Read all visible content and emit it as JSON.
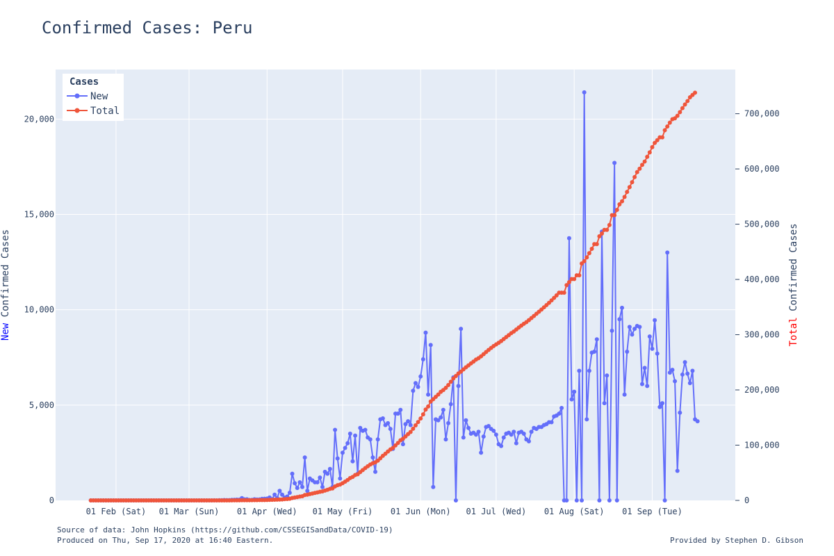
{
  "title": "Confirmed Cases: Peru",
  "footer": {
    "source": "Source of data: John Hopkins (https://github.com/CSSEGISandData/COVID-19)",
    "produced": "Produced on Thu, Sep 17, 2020 at 16:40 Eastern.",
    "credit": "Provided by Stephen D. Gibson"
  },
  "colors": {
    "new": "#636efa",
    "total": "#ef553b",
    "plot_bg": "#e5ecf6"
  },
  "chart_data": {
    "type": "line",
    "title": "Confirmed Cases: Peru",
    "legend": {
      "title": "Cases",
      "position": "top-left",
      "entries": [
        "New",
        "Total"
      ]
    },
    "y_left_label": {
      "prefix": "New",
      "rest": " Confirmed Cases"
    },
    "y_right_label": {
      "prefix": "Total",
      "rest": " Confirmed Cases"
    },
    "y_left_ticks": [
      "0",
      "5,000",
      "10,000",
      "15,000",
      "20,000"
    ],
    "y_left_tick_values": [
      0,
      5000,
      10000,
      15000,
      20000
    ],
    "y_right_ticks": [
      "0",
      "100,000",
      "200,000",
      "300,000",
      "400,000",
      "500,000",
      "600,000",
      "700,000"
    ],
    "y_right_tick_values": [
      0,
      100000,
      200000,
      300000,
      400000,
      500000,
      600000,
      700000
    ],
    "x_ticks": [
      "01 Feb (Sat)",
      "01 Mar (Sun)",
      "01 Apr (Wed)",
      "01 May (Fri)",
      "01 Jun (Mon)",
      "01 Jul (Wed)",
      "01 Aug (Sat)",
      "01 Sep (Tue)"
    ],
    "x_tick_dates": [
      "2020-02-01",
      "2020-03-01",
      "2020-04-01",
      "2020-05-01",
      "2020-06-01",
      "2020-07-01",
      "2020-08-01",
      "2020-09-01"
    ],
    "x_range": [
      "2020-01-08",
      "2020-10-04"
    ],
    "y_left_range": [
      0,
      22600
    ],
    "y_right_range": [
      0,
      780000
    ],
    "grid": true,
    "dates_start": "2020-01-22",
    "series": [
      {
        "name": "New",
        "axis": "left",
        "values": [
          0,
          0,
          0,
          0,
          0,
          0,
          0,
          0,
          0,
          0,
          0,
          0,
          0,
          0,
          0,
          0,
          0,
          0,
          0,
          0,
          0,
          0,
          0,
          0,
          0,
          0,
          0,
          0,
          0,
          0,
          0,
          0,
          0,
          0,
          0,
          0,
          0,
          0,
          0,
          0,
          0,
          0,
          0,
          0,
          0,
          0,
          0,
          0,
          1,
          6,
          2,
          7,
          10,
          20,
          13,
          15,
          28,
          31,
          39,
          38,
          117,
          55,
          60,
          23,
          28,
          60,
          45,
          50,
          80,
          85,
          95,
          150,
          60,
          300,
          120,
          500,
          300,
          150,
          200,
          400,
          1400,
          900,
          650,
          950,
          700,
          2250,
          500,
          1150,
          1050,
          950,
          950,
          1200,
          700,
          1500,
          1400,
          1650,
          700,
          3700,
          2200,
          1150,
          2500,
          2750,
          3000,
          3500,
          2050,
          3400,
          1400,
          3800,
          3650,
          3700,
          3300,
          3200,
          2250,
          1500,
          3200,
          4250,
          4300,
          3950,
          4050,
          3750,
          2700,
          4550,
          4550,
          4750,
          2950,
          4000,
          4150,
          3950,
          5750,
          6150,
          5950,
          6500,
          7400,
          8800,
          5550,
          8150,
          700,
          4250,
          4200,
          4350,
          4750,
          3200,
          4050,
          5050,
          6450,
          0,
          6000,
          9000,
          3300,
          4200,
          3800,
          3500,
          3550,
          3450,
          3600,
          2500,
          3350,
          3850,
          3900,
          3750,
          3650,
          3450,
          2950,
          2850,
          3300,
          3500,
          3550,
          3450,
          3600,
          3000,
          3550,
          3600,
          3500,
          3200,
          3100,
          3600,
          3800,
          3750,
          3850,
          3850,
          3950,
          4000,
          4100,
          4100,
          4400,
          4450,
          4550,
          4850,
          0,
          0,
          13750,
          5300,
          5700,
          0,
          6800,
          0,
          21400,
          4250,
          6800,
          7750,
          7800,
          8450,
          0,
          14100,
          5100,
          6550,
          0,
          8900,
          17700,
          0,
          9500,
          10100,
          5550,
          7800,
          9100,
          8700,
          9000,
          9150,
          9100,
          6100,
          6950,
          6000,
          8600,
          7950,
          9450,
          7700,
          4900,
          5100,
          0,
          13000,
          6700,
          6850,
          6250,
          1550,
          4600,
          6600,
          7250,
          6650,
          6150,
          6800,
          4250,
          4150
        ]
      },
      {
        "name": "Total",
        "axis": "right",
        "values": [
          0,
          0,
          0,
          0,
          0,
          0,
          0,
          0,
          0,
          0,
          0,
          0,
          0,
          0,
          0,
          0,
          0,
          0,
          0,
          0,
          0,
          0,
          0,
          0,
          0,
          0,
          0,
          0,
          0,
          0,
          0,
          0,
          0,
          0,
          0,
          0,
          0,
          0,
          0,
          0,
          0,
          0,
          0,
          0,
          0,
          0,
          0,
          0,
          1,
          7,
          9,
          11,
          15,
          22,
          38,
          43,
          71,
          86,
          117,
          145,
          234,
          263,
          318,
          363,
          395,
          416,
          480,
          580,
          635,
          671,
          852,
          950,
          1065,
          1323,
          1414,
          1595,
          1746,
          2281,
          2561,
          2954,
          4342,
          5256,
          5897,
          6848,
          7519,
          9784,
          10303,
          11475,
          12491,
          13489,
          14420,
          15628,
          16325,
          17837,
          19250,
          20914,
          21648,
          25331,
          27517,
          28699,
          31190,
          33931,
          36976,
          40459,
          42534,
          45928,
          47372,
          51189,
          54817,
          58526,
          61847,
          65015,
          67307,
          68822,
          72059,
          76306,
          80604,
          84495,
          88541,
          92273,
          94933,
          99483,
          104020,
          108769,
          111698,
          115754,
          119959,
          123979,
          129751,
          135905,
          141779,
          148285,
          155671,
          164476,
          170039,
          178914,
          183198,
          187400,
          191758,
          196515,
          199696,
          203736,
          208823,
          214788,
          220749,
          225132,
          229736,
          232992,
          237156,
          240908,
          244388,
          247925,
          251338,
          254936,
          257447,
          260810,
          264689,
          268602,
          272364,
          275989,
          279419,
          282365,
          285213,
          288477,
          292004,
          295599,
          299080,
          302718,
          305703,
          309278,
          312911,
          316448,
          319646,
          322710,
          326326,
          330123,
          333867,
          337724,
          341586,
          345537,
          349500,
          353590,
          357681,
          362087,
          366550,
          371096,
          375961,
          375961,
          375961,
          389717,
          395005,
          400683,
          400683,
          407492,
          407492,
          428850,
          433100,
          439890,
          447624,
          455409,
          463875,
          463875,
          478024,
          483133,
          489680,
          489680,
          498555,
          516296,
          516296,
          525803,
          535946,
          541493,
          549321,
          558420,
          567059,
          576067,
          585236,
          594326,
          600438,
          607382,
          613378,
          621997,
          629961,
          639435,
          647166,
          652037,
          657129,
          657129,
          670145,
          676848,
          683702,
          689977,
          691575,
          696190,
          702776,
          710067,
          716670,
          722832,
          729619,
          733860,
          738020
        ]
      }
    ]
  }
}
